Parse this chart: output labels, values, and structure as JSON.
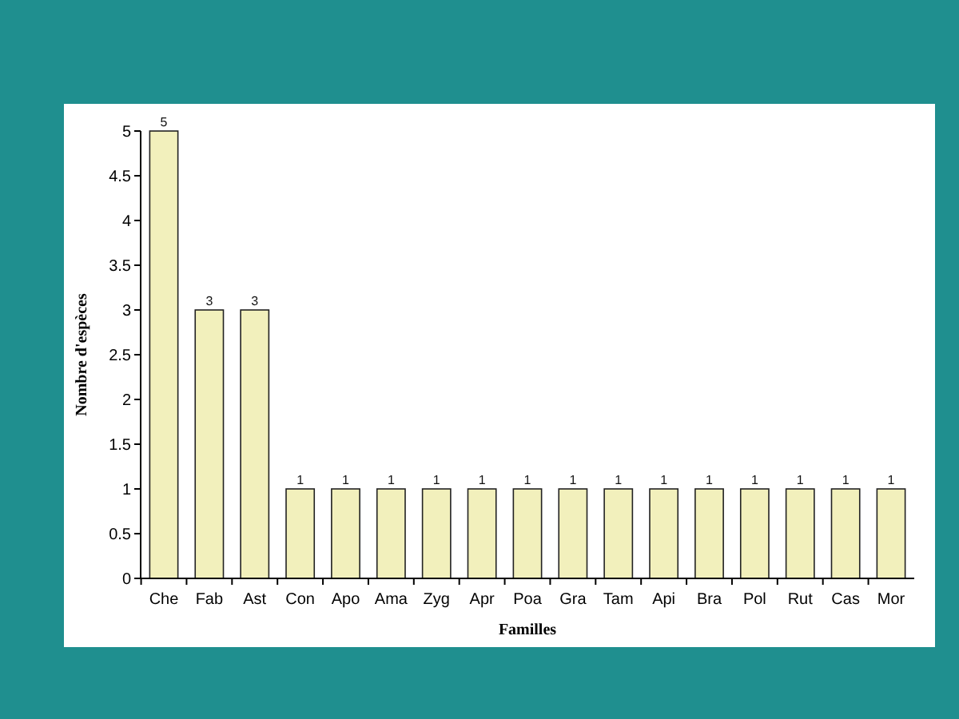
{
  "chart_data": {
    "type": "bar",
    "xlabel": "Familles",
    "ylabel": "Nombre d'espèces",
    "categories": [
      "Che",
      "Fab",
      "Ast",
      "Con",
      "Apo",
      "Ama",
      "Zyg",
      "Apr",
      "Poa",
      "Gra",
      "Tam",
      "Api",
      "Bra",
      "Pol",
      "Rut",
      "Cas",
      "Mor"
    ],
    "values": [
      5,
      3,
      3,
      1,
      1,
      1,
      1,
      1,
      1,
      1,
      1,
      1,
      1,
      1,
      1,
      1,
      1
    ],
    "color": "#f2f0bc",
    "ylim": [
      0,
      5
    ],
    "yticks": [
      0,
      0.5,
      1,
      1.5,
      2,
      2.5,
      3,
      3.5,
      4,
      4.5,
      5
    ],
    "data_labels": true
  }
}
